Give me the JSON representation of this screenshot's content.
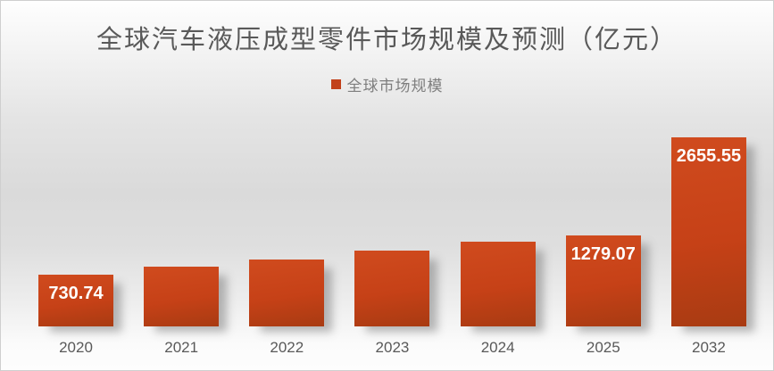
{
  "title": "全球汽车液压成型零件市场规模及预测（亿元）",
  "legend": {
    "label": "全球市场规模"
  },
  "colors": {
    "bar_top": "#d04b1e",
    "bar_mid": "#c64117",
    "bar_bottom": "#a83b12",
    "legend_swatch": "#c2411a",
    "title_text": "#595959",
    "axis_text": "#595959",
    "legend_text": "#7e7e7e",
    "data_label_text": "#ffffff"
  },
  "chart_data": {
    "type": "bar",
    "title": "全球汽车液压成型零件市场规模及预测（亿元）",
    "categories": [
      "2020",
      "2021",
      "2022",
      "2023",
      "2024",
      "2025",
      "2032"
    ],
    "series": [
      {
        "name": "全球市场规模",
        "values": [
          730.74,
          835,
          935,
          1060,
          1190,
          1279.07,
          2655.55
        ]
      }
    ],
    "data_labels": [
      "730.74",
      "",
      "",
      "",
      "",
      "1279.07",
      "2655.55"
    ],
    "ylabel": "",
    "xlabel": "",
    "ylim": [
      0,
      2700
    ],
    "grid": false,
    "value_axis_visible": false,
    "legend_position": "top",
    "note": "values for 2021-2024 estimated from bar heights; labels shown only on 2020, 2025, 2032"
  }
}
